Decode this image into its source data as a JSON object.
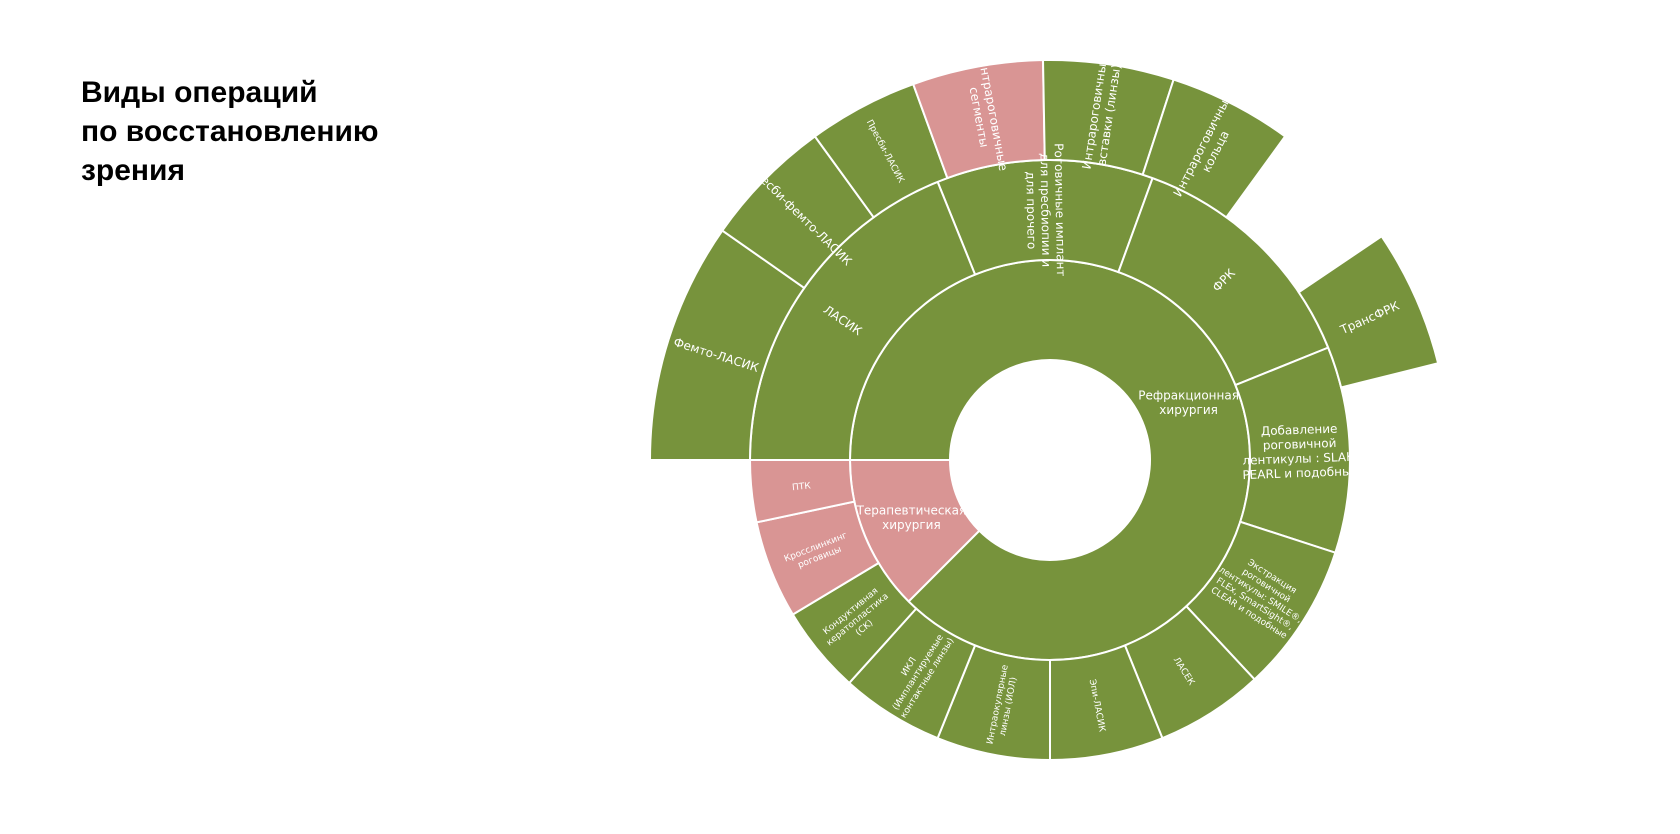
{
  "page_title_lines": [
    "Виды операций",
    "по восстановлению",
    "зрения"
  ],
  "colors": {
    "green": "#77933c",
    "pink": "#d99594",
    "border": "#ffffff",
    "label": "#ffffff"
  },
  "chart_data": {
    "type": "sunburst",
    "inner_hole": true,
    "rings": [
      {
        "level": 1,
        "segments": [
          {
            "id": "refr",
            "label": "Рефракционная хирургия",
            "color": "green",
            "start_deg": -90,
            "end_deg": 225
          },
          {
            "id": "ther",
            "label": "Терапевтическая хирургия",
            "color": "pink",
            "start_deg": 225,
            "end_deg": 270
          }
        ]
      },
      {
        "level": 2,
        "segments": [
          {
            "id": "corneal_impl",
            "parent": "refr",
            "label": "Роговичные имплант для пресбиопии и для прочего",
            "color": "green",
            "start_deg": -22,
            "end_deg": 20
          },
          {
            "id": "frk",
            "parent": "refr",
            "label": "ФРК",
            "color": "green",
            "start_deg": 20,
            "end_deg": 68
          },
          {
            "id": "lenticule_add",
            "parent": "refr",
            "label": "Добавление роговичной лентикулы : SLAK, PEARL и подобные",
            "color": "green",
            "start_deg": 68,
            "end_deg": 108
          },
          {
            "id": "lenticule_extr",
            "parent": "refr",
            "label": "Экстракция роговичной лентикулы: SMILE®, FLEx, SmartSight®, CLEAR и подобные",
            "color": "green",
            "start_deg": 108,
            "end_deg": 137
          },
          {
            "id": "lasek",
            "parent": "refr",
            "label": "ЛАСЕК",
            "color": "green",
            "start_deg": 137,
            "end_deg": 158
          },
          {
            "id": "epi_lasik",
            "parent": "refr",
            "label": "Эпи-ЛАСИК",
            "color": "green",
            "start_deg": 158,
            "end_deg": 180
          },
          {
            "id": "iol",
            "parent": "refr",
            "label": "Интраокулярные линзы (ИОЛ)",
            "color": "green",
            "start_deg": 180,
            "end_deg": 202
          },
          {
            "id": "ikl",
            "parent": "refr",
            "label": "ИКЛ (Имплантируемые контактные линзы)",
            "color": "green",
            "start_deg": 202,
            "end_deg": 222
          },
          {
            "id": "ck",
            "parent": "refr",
            "label": "Кондуктивная кератопластика (CK)",
            "color": "green",
            "start_deg": 222,
            "end_deg": 239
          },
          {
            "id": "cxl",
            "parent": "ther",
            "label": "Кросслинкинг роговицы",
            "color": "pink",
            "start_deg": 239,
            "end_deg": 258
          },
          {
            "id": "ptk",
            "parent": "ther",
            "label": "ПТК",
            "color": "pink",
            "start_deg": 258,
            "end_deg": 270
          },
          {
            "id": "lasik",
            "parent": "refr",
            "label": "ЛАСИК",
            "color": "green",
            "start_deg": 270,
            "end_deg": 338
          }
        ]
      },
      {
        "level": 3,
        "segments": [
          {
            "id": "femto_lasik",
            "parent": "lasik",
            "label": "Фемто-ЛАСИК",
            "color": "green",
            "start_deg": 270,
            "end_deg": 305
          },
          {
            "id": "presbi_femto",
            "parent": "lasik",
            "label": "Пресби-фемто-ЛАСИК",
            "color": "green",
            "start_deg": 305,
            "end_deg": 324,
            "outer": true
          },
          {
            "id": "presbi_lasik",
            "parent": "lasik",
            "label": "Пресби-ЛАСИК",
            "color": "green",
            "start_deg": 324,
            "end_deg": 340
          },
          {
            "id": "intra_segments",
            "parent": "corneal_impl",
            "label": "Интрароговичные сегменты",
            "color": "pink",
            "start_deg": 340,
            "end_deg": 359
          },
          {
            "id": "intra_inserts",
            "parent": "corneal_impl",
            "label": "Интрароговичные вставки (линзы)",
            "color": "green",
            "start_deg": 359,
            "end_deg": 378
          },
          {
            "id": "intra_rings",
            "parent": "corneal_impl",
            "label": "Интрароговичные кольца",
            "color": "green",
            "start_deg": 378,
            "end_deg": 396
          },
          {
            "id": "trans_frk",
            "parent": "frk",
            "label": "ТрансФРК",
            "color": "green",
            "start_deg": 56,
            "end_deg": 76
          }
        ]
      }
    ]
  }
}
